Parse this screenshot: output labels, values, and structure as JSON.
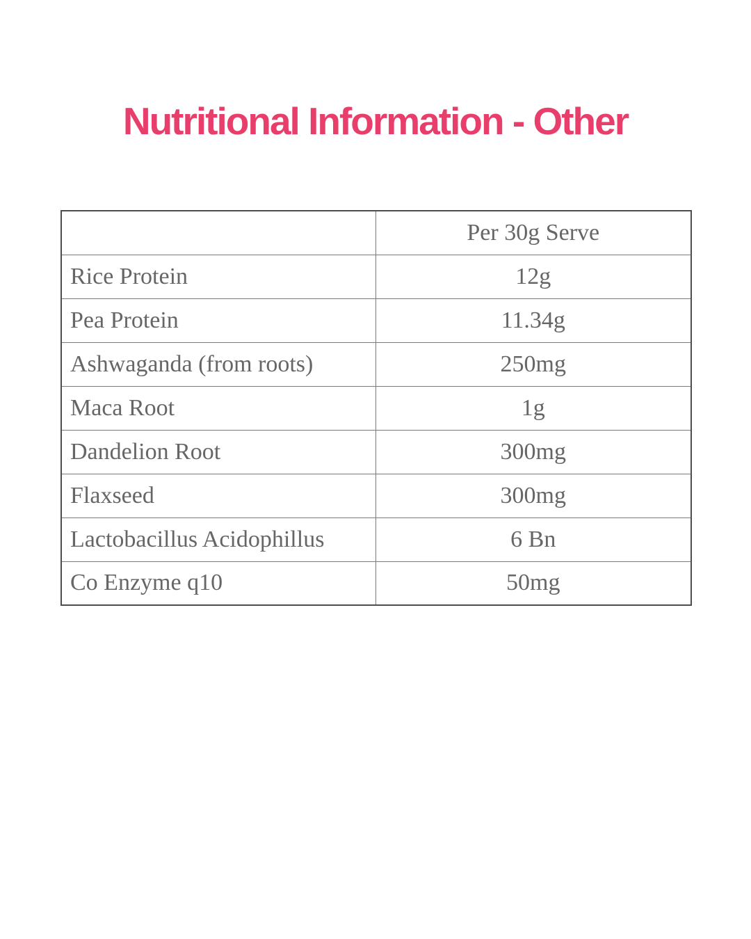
{
  "page": {
    "background": "#ffffff"
  },
  "title": {
    "text": "Nutritional Information - Other",
    "color": "#e83e6b"
  },
  "table": {
    "border_outer_color": "#4d4d4d",
    "border_inner_color": "#7b7b7b",
    "text_color": "#666666",
    "header": {
      "name_col": "",
      "value_col": "Per 30g Serve"
    },
    "rows": [
      {
        "label": "Rice Protein",
        "value": "12g"
      },
      {
        "label": "Pea Protein",
        "value": "11.34g"
      },
      {
        "label": "Ashwaganda (from roots)",
        "value": "250mg"
      },
      {
        "label": "Maca Root",
        "value": "1g"
      },
      {
        "label": "Dandelion Root",
        "value": "300mg"
      },
      {
        "label": "Flaxseed",
        "value": "300mg"
      },
      {
        "label": "Lactobacillus Acidophillus",
        "value": "6 Bn"
      },
      {
        "label": "Co Enzyme q10",
        "value": "50mg"
      }
    ]
  },
  "chart_data": {
    "type": "table",
    "title": "Nutritional Information - Other",
    "columns": [
      "",
      "Per 30g Serve"
    ],
    "rows": [
      [
        "Rice Protein",
        "12g"
      ],
      [
        "Pea Protein",
        "11.34g"
      ],
      [
        "Ashwaganda (from roots)",
        "250mg"
      ],
      [
        "Maca Root",
        "1g"
      ],
      [
        "Dandelion Root",
        "300mg"
      ],
      [
        "Flaxseed",
        "300mg"
      ],
      [
        "Lactobacillus Acidophillus",
        "6 Bn"
      ],
      [
        "Co Enzyme q10",
        "50mg"
      ]
    ],
    "layout_hints": {
      "grid": "on",
      "label_column_align": "left",
      "value_column_align": "center",
      "header_row": "value column only"
    }
  }
}
